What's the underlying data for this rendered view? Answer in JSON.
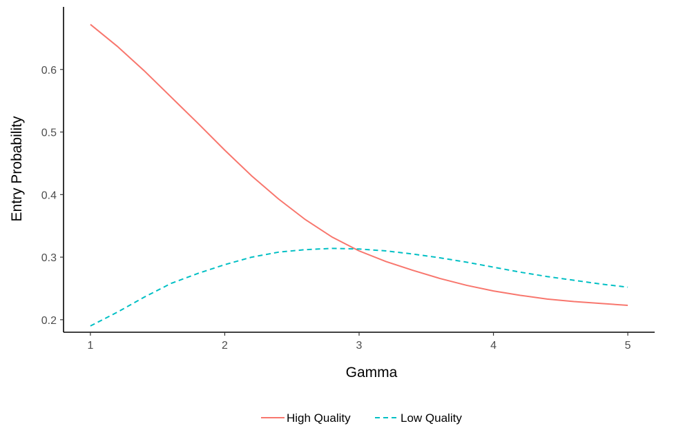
{
  "chart_data": {
    "type": "line",
    "title": "",
    "xlabel": "Gamma",
    "ylabel": "Entry Probability",
    "xlim": [
      0.8,
      5.2
    ],
    "ylim": [
      0.18,
      0.7
    ],
    "x_ticks": [
      1,
      2,
      3,
      4,
      5
    ],
    "y_ticks": [
      0.2,
      0.3,
      0.4,
      0.5,
      0.6
    ],
    "grid": false,
    "legend_position": "bottom",
    "series": [
      {
        "name": "High Quality",
        "color": "#F8766D",
        "line_style": "solid",
        "x": [
          1.0,
          1.2,
          1.4,
          1.6,
          1.8,
          2.0,
          2.2,
          2.4,
          2.6,
          2.8,
          3.0,
          3.2,
          3.4,
          3.6,
          3.8,
          4.0,
          4.2,
          4.4,
          4.6,
          4.8,
          5.0
        ],
        "y": [
          0.672,
          0.637,
          0.598,
          0.556,
          0.514,
          0.471,
          0.43,
          0.393,
          0.36,
          0.332,
          0.31,
          0.293,
          0.279,
          0.266,
          0.255,
          0.246,
          0.239,
          0.233,
          0.229,
          0.226,
          0.223
        ]
      },
      {
        "name": "Low Quality",
        "color": "#00BFC4",
        "line_style": "dashed",
        "x": [
          1.0,
          1.2,
          1.4,
          1.6,
          1.8,
          2.0,
          2.2,
          2.4,
          2.6,
          2.8,
          3.0,
          3.2,
          3.4,
          3.6,
          3.8,
          4.0,
          4.2,
          4.4,
          4.6,
          4.8,
          5.0
        ],
        "y": [
          0.19,
          0.212,
          0.236,
          0.258,
          0.274,
          0.288,
          0.3,
          0.308,
          0.312,
          0.314,
          0.313,
          0.31,
          0.305,
          0.299,
          0.292,
          0.284,
          0.276,
          0.269,
          0.263,
          0.257,
          0.252
        ]
      }
    ]
  }
}
